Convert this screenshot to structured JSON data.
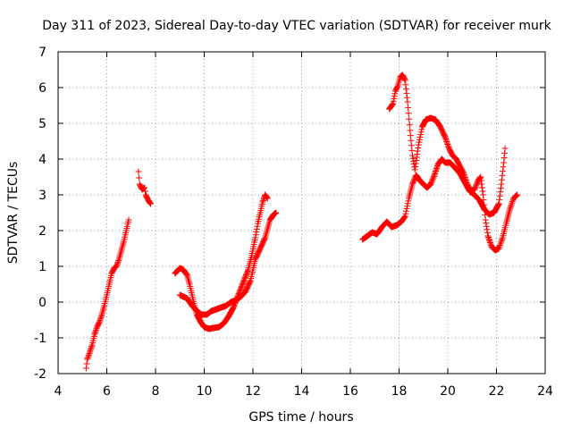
{
  "chart_data": {
    "type": "scatter",
    "title": "Day 311 of 2023, Sidereal Day-to-day VTEC variation (SDTVAR) for receiver murk",
    "xlabel": "GPS time / hours",
    "ylabel": "SDTVAR / TECUs",
    "xlim": [
      4,
      24
    ],
    "ylim": [
      -2,
      7
    ],
    "xticks": [
      4,
      6,
      8,
      10,
      12,
      14,
      16,
      18,
      20,
      22,
      24
    ],
    "yticks": [
      -2,
      -1,
      0,
      1,
      2,
      3,
      4,
      5,
      6,
      7
    ],
    "xtick_labels": [
      "4",
      "6",
      "8",
      "10",
      "12",
      "14",
      "16",
      "18",
      "20",
      "22",
      "24"
    ],
    "ytick_labels": [
      "-2",
      "-1",
      "0",
      "1",
      "2",
      "3",
      "4",
      "5",
      "6",
      "7"
    ],
    "grid": true,
    "marker": "+",
    "color": "#ff0000",
    "series": [
      {
        "name": "SDTVAR",
        "segments": [
          [
            [
              5.15,
              -1.85
            ],
            [
              5.2,
              -1.6
            ],
            [
              5.3,
              -1.4
            ],
            [
              5.4,
              -1.2
            ],
            [
              5.5,
              -0.9
            ],
            [
              5.6,
              -0.7
            ],
            [
              5.7,
              -0.55
            ],
            [
              5.8,
              -0.35
            ],
            [
              5.9,
              -0.1
            ],
            [
              6.0,
              0.2
            ],
            [
              6.1,
              0.5
            ],
            [
              6.2,
              0.8
            ],
            [
              6.3,
              0.95
            ],
            [
              6.4,
              1.0
            ],
            [
              6.5,
              1.2
            ],
            [
              6.6,
              1.45
            ],
            [
              6.7,
              1.7
            ],
            [
              6.8,
              2.0
            ],
            [
              6.9,
              2.3
            ]
          ],
          [
            [
              7.3,
              3.65
            ],
            [
              7.35,
              3.3
            ],
            [
              7.45,
              3.15
            ],
            [
              7.55,
              3.2
            ],
            [
              7.6,
              3.0
            ],
            [
              7.7,
              2.85
            ],
            [
              7.8,
              2.75
            ]
          ],
          [
            [
              8.8,
              0.8
            ],
            [
              9.0,
              0.95
            ],
            [
              9.15,
              0.9
            ],
            [
              9.3,
              0.75
            ],
            [
              9.4,
              0.5
            ],
            [
              9.5,
              0.2
            ],
            [
              9.6,
              -0.1
            ],
            [
              9.7,
              -0.35
            ],
            [
              9.85,
              -0.55
            ],
            [
              10.0,
              -0.7
            ],
            [
              10.2,
              -0.75
            ],
            [
              10.4,
              -0.72
            ],
            [
              10.6,
              -0.7
            ],
            [
              10.8,
              -0.6
            ],
            [
              11.0,
              -0.4
            ],
            [
              11.2,
              -0.15
            ],
            [
              11.4,
              0.2
            ],
            [
              11.6,
              0.55
            ],
            [
              11.8,
              0.9
            ],
            [
              11.95,
              1.3
            ],
            [
              12.1,
              1.8
            ],
            [
              12.2,
              2.2
            ],
            [
              12.3,
              2.5
            ],
            [
              12.4,
              2.8
            ],
            [
              12.5,
              3.0
            ],
            [
              12.6,
              2.9
            ]
          ],
          [
            [
              9.0,
              0.2
            ],
            [
              9.15,
              0.15
            ],
            [
              9.3,
              0.1
            ],
            [
              9.5,
              -0.1
            ],
            [
              9.7,
              -0.25
            ],
            [
              9.9,
              -0.35
            ],
            [
              10.1,
              -0.35
            ],
            [
              10.3,
              -0.25
            ],
            [
              10.5,
              -0.2
            ],
            [
              10.7,
              -0.15
            ],
            [
              10.9,
              -0.1
            ],
            [
              11.1,
              0.0
            ],
            [
              11.3,
              0.05
            ],
            [
              11.5,
              0.15
            ],
            [
              11.7,
              0.3
            ],
            [
              11.9,
              0.6
            ],
            [
              12.0,
              0.9
            ],
            [
              12.1,
              1.2
            ],
            [
              12.3,
              1.5
            ],
            [
              12.5,
              1.8
            ],
            [
              12.6,
              2.05
            ],
            [
              12.7,
              2.3
            ],
            [
              12.85,
              2.45
            ],
            [
              12.95,
              2.5
            ]
          ],
          [
            [
              16.5,
              1.75
            ],
            [
              16.7,
              1.85
            ],
            [
              16.9,
              1.95
            ],
            [
              17.1,
              1.9
            ],
            [
              17.3,
              2.1
            ],
            [
              17.5,
              2.25
            ],
            [
              17.7,
              2.1
            ],
            [
              17.9,
              2.15
            ],
            [
              18.1,
              2.25
            ],
            [
              18.25,
              2.4
            ],
            [
              18.4,
              2.9
            ],
            [
              18.55,
              3.3
            ],
            [
              18.7,
              3.55
            ],
            [
              18.85,
              3.4
            ],
            [
              19.0,
              3.3
            ],
            [
              19.15,
              3.2
            ],
            [
              19.3,
              3.3
            ],
            [
              19.45,
              3.55
            ],
            [
              19.6,
              3.85
            ],
            [
              19.75,
              4.0
            ],
            [
              19.9,
              3.9
            ],
            [
              20.1,
              3.9
            ],
            [
              20.3,
              3.75
            ],
            [
              20.5,
              3.6
            ],
            [
              20.7,
              3.35
            ],
            [
              20.9,
              3.1
            ],
            [
              21.1,
              3.0
            ],
            [
              21.3,
              2.85
            ],
            [
              21.5,
              2.6
            ],
            [
              21.7,
              2.45
            ],
            [
              21.9,
              2.5
            ],
            [
              22.1,
              2.75
            ],
            [
              22.2,
              3.3
            ],
            [
              22.3,
              3.9
            ],
            [
              22.35,
              4.3
            ]
          ],
          [
            [
              17.6,
              5.4
            ],
            [
              17.75,
              5.55
            ],
            [
              17.85,
              5.9
            ],
            [
              17.95,
              6.05
            ],
            [
              18.05,
              6.3
            ],
            [
              18.15,
              6.35
            ],
            [
              18.25,
              6.2
            ],
            [
              18.35,
              5.6
            ],
            [
              18.45,
              4.8
            ],
            [
              18.55,
              4.1
            ],
            [
              18.65,
              3.7
            ],
            [
              18.8,
              4.4
            ],
            [
              18.95,
              4.9
            ],
            [
              19.1,
              5.1
            ],
            [
              19.3,
              5.15
            ],
            [
              19.5,
              5.1
            ],
            [
              19.7,
              4.9
            ],
            [
              19.9,
              4.6
            ],
            [
              20.05,
              4.3
            ],
            [
              20.2,
              4.1
            ],
            [
              20.35,
              4.0
            ],
            [
              20.5,
              3.8
            ],
            [
              20.65,
              3.6
            ],
            [
              20.8,
              3.3
            ],
            [
              20.95,
              3.1
            ],
            [
              21.1,
              3.15
            ],
            [
              21.25,
              3.4
            ],
            [
              21.35,
              3.5
            ],
            [
              21.45,
              3.0
            ],
            [
              21.55,
              2.3
            ],
            [
              21.65,
              1.85
            ],
            [
              21.8,
              1.55
            ],
            [
              21.95,
              1.45
            ],
            [
              22.1,
              1.5
            ],
            [
              22.25,
              1.8
            ],
            [
              22.4,
              2.2
            ],
            [
              22.55,
              2.6
            ],
            [
              22.7,
              2.9
            ],
            [
              22.85,
              3.0
            ]
          ]
        ]
      }
    ]
  }
}
